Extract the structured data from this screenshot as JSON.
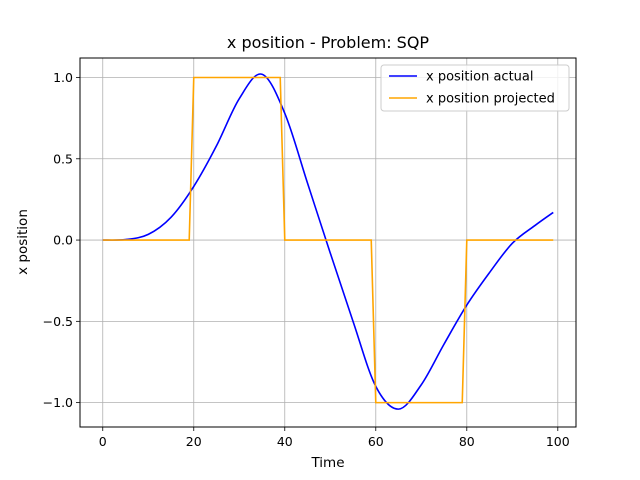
{
  "chart_data": {
    "type": "line",
    "title": "x position - Problem: SQP",
    "xlabel": "Time",
    "ylabel": "x position",
    "xlim": [
      -5,
      104
    ],
    "ylim": [
      -1.15,
      1.12
    ],
    "x_ticks": [
      0,
      20,
      40,
      60,
      80,
      100
    ],
    "y_ticks": [
      1.0,
      0.5,
      0.0,
      -0.5,
      -1.0
    ],
    "x_tick_labels": [
      "0",
      "20",
      "40",
      "60",
      "80",
      "100"
    ],
    "y_tick_labels": [
      "1.0",
      "0.5",
      "0.0",
      "−0.5",
      "−1.0"
    ],
    "grid": true,
    "legend_position": "top-right",
    "series": [
      {
        "name": "x position actual",
        "color": "#0000ff",
        "x": [
          0,
          5,
          10,
          15,
          20,
          25,
          30,
          35,
          40,
          45,
          50,
          55,
          60,
          65,
          70,
          75,
          80,
          85,
          90,
          95,
          99
        ],
        "y": [
          0.0,
          0.003,
          0.035,
          0.14,
          0.33,
          0.58,
          0.87,
          1.02,
          0.78,
          0.35,
          -0.08,
          -0.5,
          -0.9,
          -1.04,
          -0.89,
          -0.64,
          -0.4,
          -0.2,
          -0.02,
          0.09,
          0.17
        ]
      },
      {
        "name": "x position projected",
        "color": "#ffa500",
        "x": [
          0,
          19,
          20,
          39,
          40,
          59,
          60,
          79,
          80,
          99
        ],
        "y": [
          0,
          0,
          1,
          1,
          0,
          0,
          -1,
          -1,
          0,
          0
        ]
      }
    ]
  }
}
